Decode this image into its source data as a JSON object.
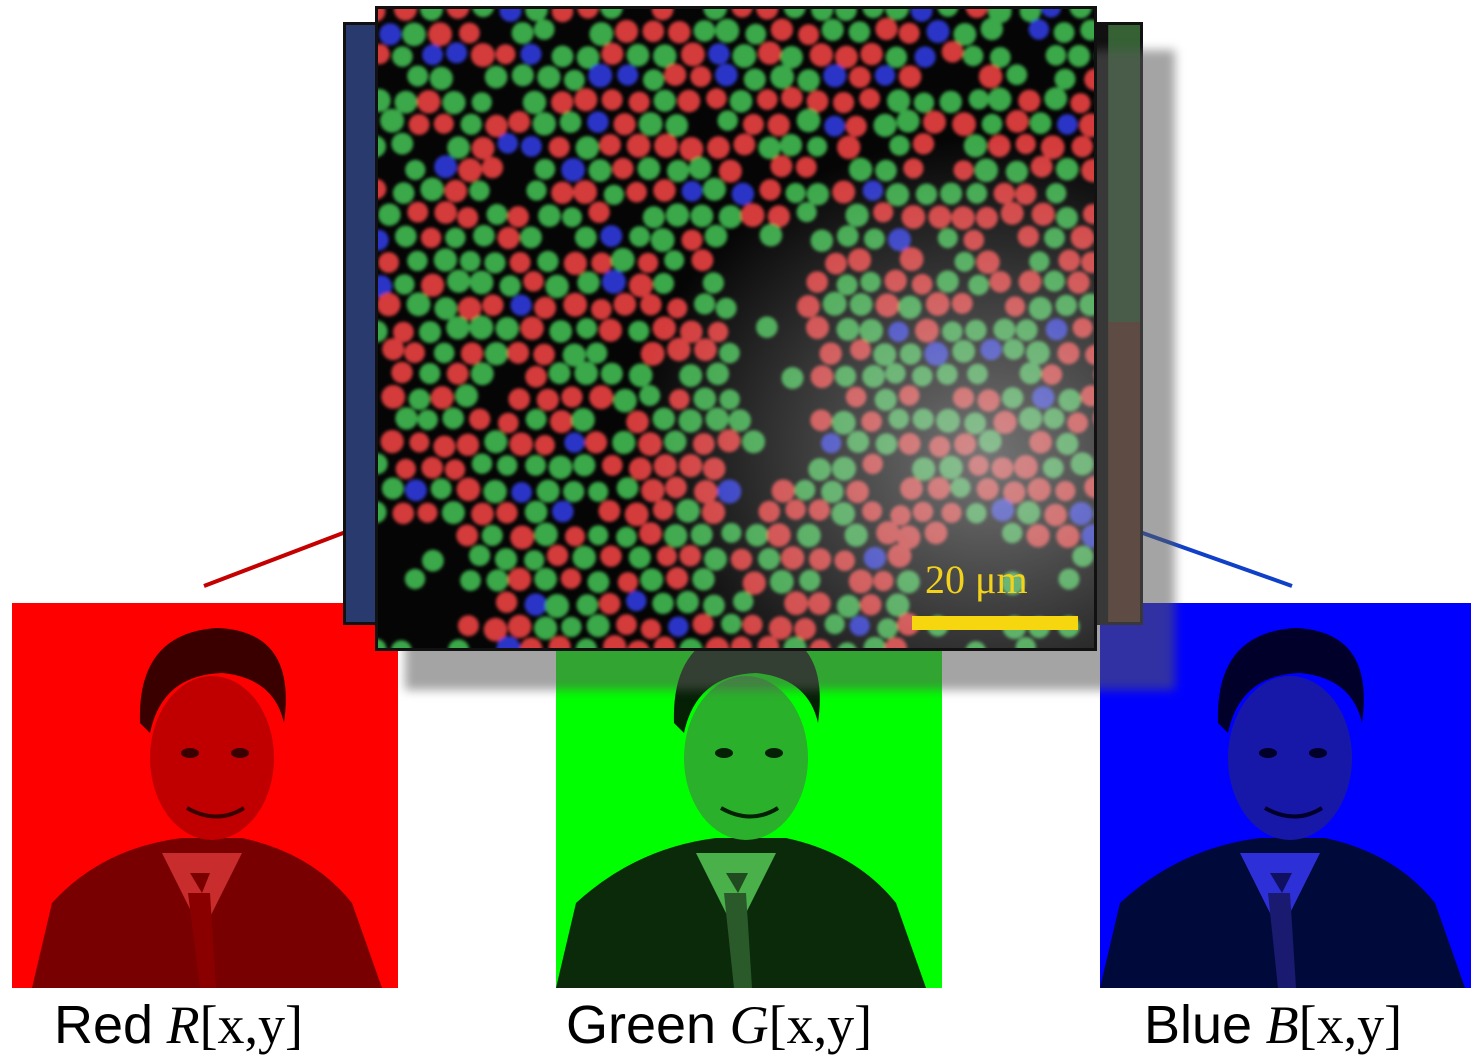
{
  "channels": [
    {
      "id": "red",
      "word": "Red",
      "symbol": "R",
      "args": "[x,y]",
      "tint": "#ff0000",
      "line": "#cc0000"
    },
    {
      "id": "green",
      "word": "Green",
      "symbol": "G",
      "args": "[x,y]",
      "tint": "#00ff00",
      "line": "#00aa00"
    },
    {
      "id": "blue",
      "word": "Blue",
      "symbol": "B",
      "args": "[x,y]",
      "tint": "#0000ff",
      "line": "#0033cc"
    }
  ],
  "mosaic": {
    "scale_label": "20 μm",
    "scale_color": "#f5d60f",
    "cone_colors": {
      "red": "#d43a3a",
      "green": "#3aa84a",
      "blue": "#2a36c8"
    }
  },
  "icons": {
    "portrait": "portrait-icon"
  }
}
